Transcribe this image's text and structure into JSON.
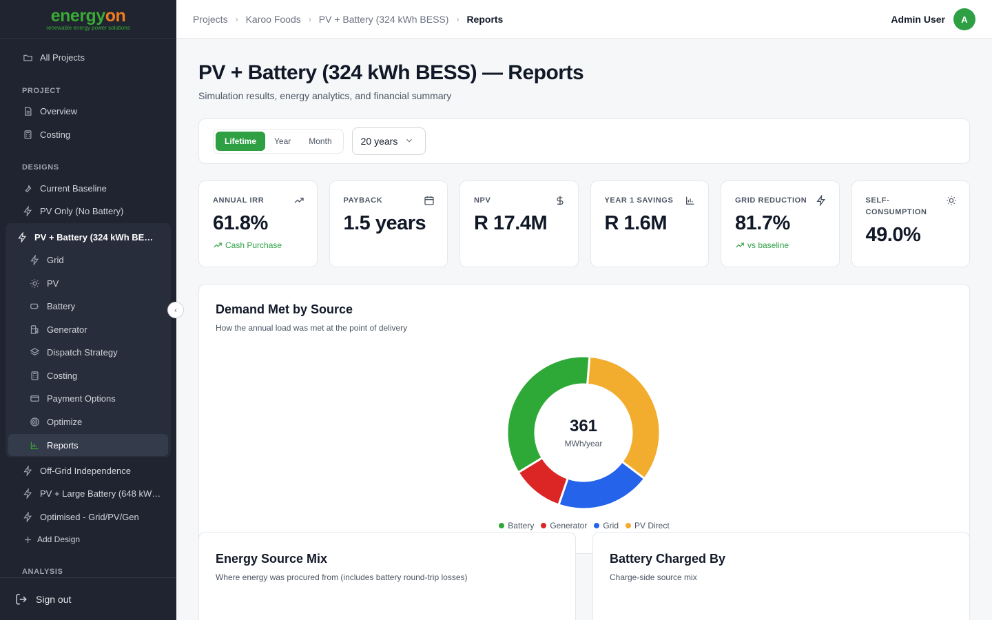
{
  "brand": {
    "name_part1": "energy",
    "name_part2": "on",
    "tagline": "renewable energy power solutions"
  },
  "sidebar": {
    "all_projects": "All Projects",
    "project_section": "PROJECT",
    "project_items": [
      {
        "label": "Overview",
        "icon": "file-icon"
      },
      {
        "label": "Costing",
        "icon": "calculator-icon"
      }
    ],
    "designs_section": "DESIGNS",
    "designs": [
      {
        "label": "Current Baseline",
        "icon": "wrench-icon"
      },
      {
        "label": "PV Only (No Battery)",
        "icon": "bolt-icon"
      }
    ],
    "active_design": "PV + Battery (324 kWh BE…",
    "sub_items": [
      {
        "label": "Grid",
        "icon": "bolt-icon"
      },
      {
        "label": "PV",
        "icon": "sun-icon"
      },
      {
        "label": "Battery",
        "icon": "battery-icon"
      },
      {
        "label": "Generator",
        "icon": "fuel-icon"
      },
      {
        "label": "Dispatch Strategy",
        "icon": "layers-icon"
      },
      {
        "label": "Costing",
        "icon": "calculator-icon"
      },
      {
        "label": "Payment Options",
        "icon": "card-icon"
      },
      {
        "label": "Optimize",
        "icon": "target-icon"
      },
      {
        "label": "Reports",
        "icon": "bar-chart-icon"
      }
    ],
    "more_designs": [
      {
        "label": "Off-Grid Independence",
        "icon": "bolt-icon"
      },
      {
        "label": "PV + Large Battery (648 kW…",
        "icon": "bolt-icon"
      },
      {
        "label": "Optimised - Grid/PV/Gen",
        "icon": "bolt-icon"
      }
    ],
    "add_design": "Add Design",
    "analysis_section": "ANALYSIS",
    "sign_out": "Sign out"
  },
  "breadcrumb": [
    "Projects",
    "Karoo Foods",
    "PV + Battery (324 kWh BESS)",
    "Reports"
  ],
  "user": {
    "name": "Admin User",
    "initial": "A",
    "avatar_color": "#2ea043"
  },
  "page": {
    "title": "PV + Battery (324 kWh BESS) — Reports",
    "subtitle": "Simulation results, energy analytics, and financial summary"
  },
  "filters": {
    "tabs": [
      "Lifetime",
      "Year",
      "Month"
    ],
    "active_tab": "Lifetime",
    "period": "20 years"
  },
  "kpis": [
    {
      "label": "Annual IRR",
      "value": "61.8%",
      "note": "Cash Purchase",
      "icon": "trending-up-icon"
    },
    {
      "label": "Payback",
      "value": "1.5 years",
      "note": "",
      "icon": "calendar-icon"
    },
    {
      "label": "NPV",
      "value": "R 17.4M",
      "note": "",
      "icon": "dollar-icon"
    },
    {
      "label": "Year 1 Savings",
      "value": "R 1.6M",
      "note": "",
      "icon": "bar-chart-icon"
    },
    {
      "label": "Grid Reduction",
      "value": "81.7%",
      "note": "vs baseline",
      "icon": "bolt-icon"
    },
    {
      "label": "Self-Consumption",
      "value": "49.0%",
      "note": "",
      "icon": "sun-icon"
    }
  ],
  "demand_chart": {
    "title": "Demand Met by Source",
    "subtitle": "How the annual load was met at the point of delivery",
    "center_value": "361",
    "center_unit": "MWh/year"
  },
  "chart_data": {
    "type": "pie",
    "title": "Demand Met by Source",
    "categories": [
      "Battery",
      "Generator",
      "Grid",
      "PV Direct"
    ],
    "values": [
      35,
      11,
      20,
      34
    ],
    "colors": [
      "#2ea836",
      "#dc2626",
      "#2563eb",
      "#f2ac2e"
    ],
    "legend": "bottom",
    "donut": true
  },
  "energy_mix": {
    "title": "Energy Source Mix",
    "subtitle": "Where energy was procured from (includes battery round-trip losses)"
  },
  "battery_charged": {
    "title": "Battery Charged By",
    "subtitle": "Charge-side source mix"
  }
}
